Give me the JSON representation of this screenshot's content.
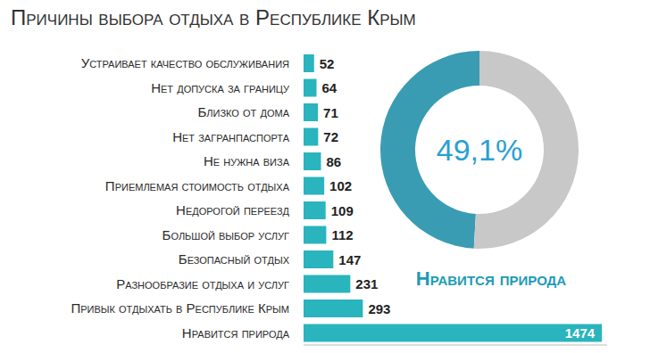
{
  "chart_data": [
    {
      "type": "bar",
      "title": "Причины выбора отдыха в Республике Крым",
      "orientation": "horizontal",
      "categories": [
        "Устраивает качество обслуживания",
        "Нет допуска за границу",
        "Близко от дома",
        "Нет загранпаспорта",
        "Не нужна виза",
        "Приемлемая стоимость отдыха",
        "Недорогой переезд",
        "Большой выбор услуг",
        "Безопасный отдых",
        "Разнообразие отдыха и услуг",
        "Привык отдыхать в Республике Крым",
        "Нравится природа"
      ],
      "values": [
        52,
        64,
        71,
        72,
        86,
        102,
        109,
        112,
        147,
        231,
        293,
        1474
      ],
      "color": "#2ab4bd",
      "xlim": [
        0,
        1500
      ],
      "data_labels": true,
      "tick_labels": "y",
      "grid": false
    },
    {
      "type": "pie",
      "title": "Нравится природа",
      "values": [
        49.1,
        50.9
      ],
      "value_labels": [
        "49,1%",
        null
      ],
      "colors": [
        "#3a9cb2",
        "#c8c8c8"
      ],
      "data_labels": true
    }
  ]
}
